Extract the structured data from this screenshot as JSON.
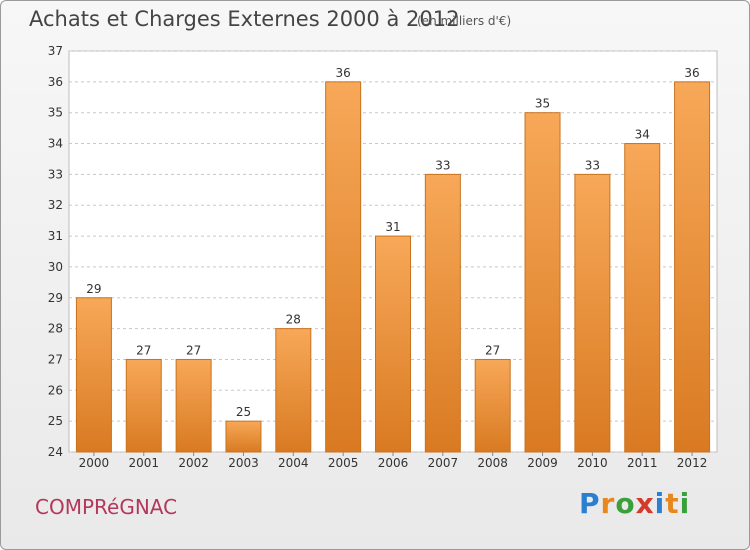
{
  "header": {
    "title": "Achats et Charges Externes 2000 à 2012",
    "unit": "(en milliers d'€)"
  },
  "footer": {
    "commune": "COMPRéGNAC",
    "logo_letters": [
      "P",
      "r",
      "o",
      "x",
      "i",
      "t",
      "i"
    ],
    "logo_colors": [
      "#2a7fd0",
      "#e8871e",
      "#3aa03a",
      "#d43a2a",
      "#2a7fd0",
      "#e8871e",
      "#3aa03a"
    ]
  },
  "colors": {
    "bar_top": "#f7a858",
    "bar_bottom": "#d97a22",
    "bar_border": "#c9731f",
    "grid": "#c8c8c8",
    "axis_text": "#333333",
    "plot_bg": "#ffffff"
  },
  "chart_data": {
    "type": "bar",
    "title": "Achats et Charges Externes 2000 à 2012",
    "xlabel": "",
    "ylabel": "",
    "categories": [
      "2000",
      "2001",
      "2002",
      "2003",
      "2004",
      "2005",
      "2006",
      "2007",
      "2008",
      "2009",
      "2010",
      "2011",
      "2012"
    ],
    "values": [
      29,
      27,
      27,
      25,
      28,
      36,
      31,
      33,
      27,
      35,
      33,
      34,
      36
    ],
    "ylim": [
      24,
      37
    ],
    "yticks": [
      24,
      25,
      26,
      27,
      28,
      29,
      30,
      31,
      32,
      33,
      34,
      35,
      36,
      37
    ],
    "grid": true,
    "data_labels": true
  }
}
